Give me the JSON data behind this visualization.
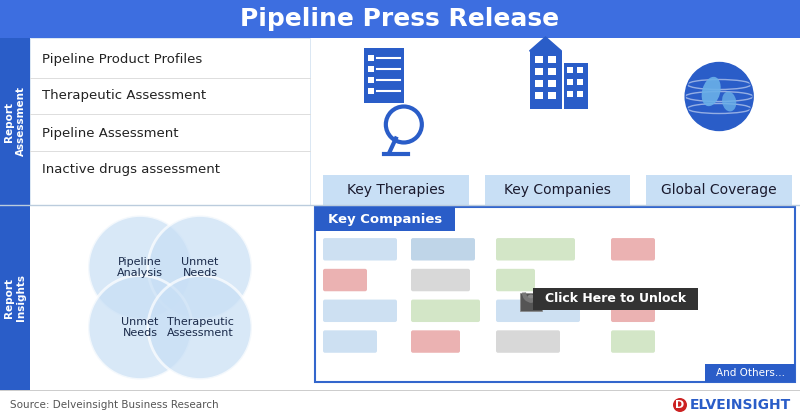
{
  "title": "Pipeline Press Release",
  "title_fontsize": 18,
  "title_color": "#ffffff",
  "bg_color": "#ffffff",
  "blue_dark": "#2a5dc8",
  "blue_sidebar": "#2a5dc8",
  "blue_mid": "#3366cc",
  "blue_title": "#3d6ee0",
  "blue_light": "#c8dff5",
  "blue_lighter": "#e8f2fb",
  "report_assessment_label": "Report\nAssessment",
  "report_insights_label": "Report\nInsights",
  "assessment_items": [
    "Pipeline Product Profiles",
    "Therapeutic Assessment",
    "Pipeline Assessment",
    "Inactive drugs assessment"
  ],
  "key_labels": [
    "Key Therapies",
    "Key Companies",
    "Global Coverage"
  ],
  "venn_labels": [
    "Pipeline\nAnalysis",
    "Unmet\nNeeds",
    "Unmet\nNeeds",
    "Therapeutic\nAssessment"
  ],
  "key_companies_label": "Key Companies",
  "click_unlock": "Click Here to Unlock",
  "and_others": "And Others...",
  "source_text": "Source: Delveinsight Business Research",
  "brand": "ELVEINSIGHT"
}
